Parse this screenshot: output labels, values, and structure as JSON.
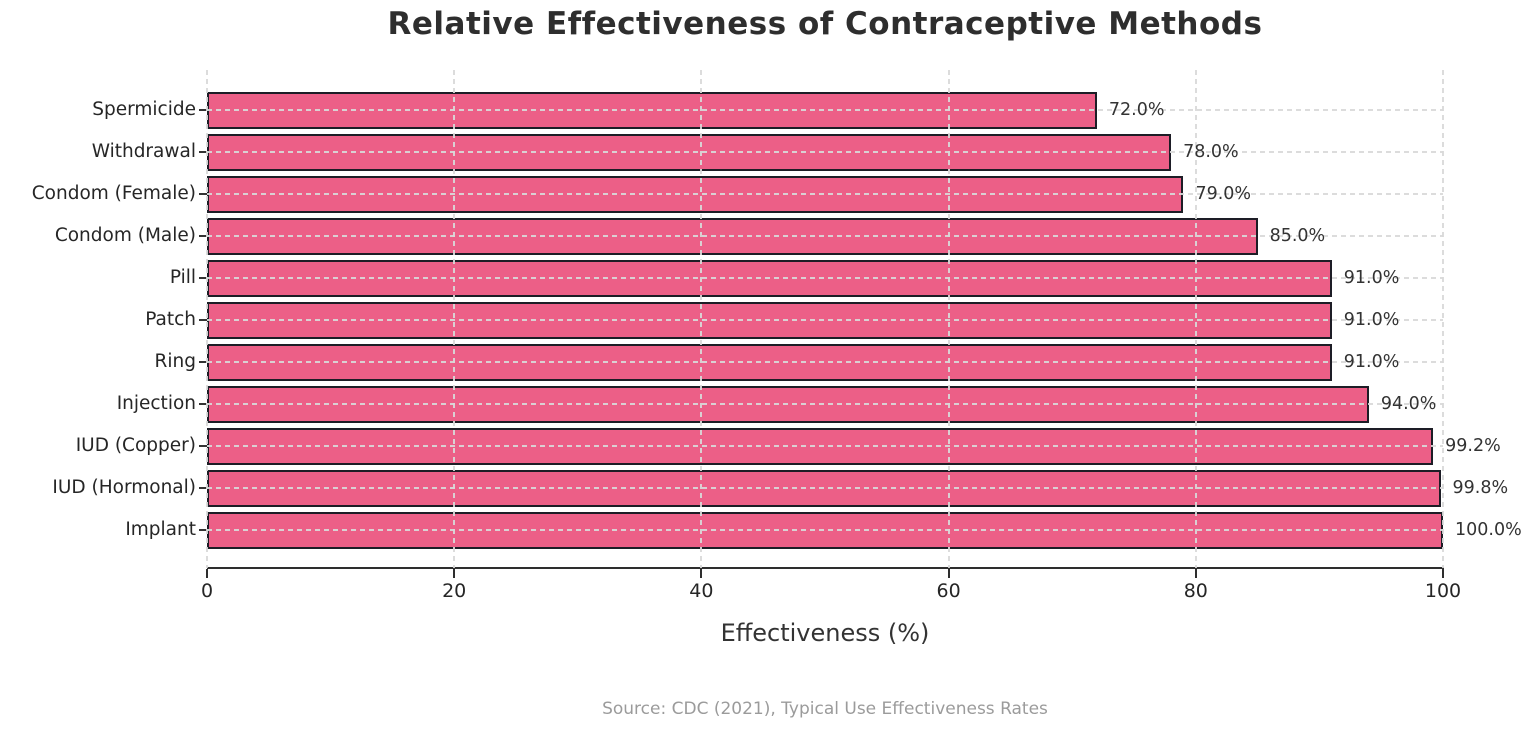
{
  "title": "Relative Effectiveness of Contraceptive Methods",
  "xlabel": "Effectiveness (%)",
  "source": "Source: CDC (2021), Typical Use Effectiveness Rates",
  "chart_data": {
    "type": "bar",
    "orientation": "horizontal",
    "title": "Relative Effectiveness of Contraceptive Methods",
    "xlabel": "Effectiveness (%)",
    "ylabel": "",
    "categories": [
      "Spermicide",
      "Withdrawal",
      "Condom (Female)",
      "Condom (Male)",
      "Pill",
      "Patch",
      "Ring",
      "Injection",
      "IUD (Copper)",
      "IUD (Hormonal)",
      "Implant"
    ],
    "values": [
      72.0,
      78.0,
      79.0,
      85.0,
      91.0,
      91.0,
      91.0,
      94.0,
      99.2,
      99.8,
      100.0
    ],
    "value_labels": [
      "72.0%",
      "78.0%",
      "79.0%",
      "85.0%",
      "91.0%",
      "91.0%",
      "91.0%",
      "94.0%",
      "99.2%",
      "99.8%",
      "100.0%"
    ],
    "xlim": [
      0,
      100
    ],
    "xticks": [
      0,
      20,
      40,
      60,
      80,
      100
    ],
    "grid": "dashed, horizontal and vertical, drawn over bars",
    "legend": "none",
    "source_note": "Source: CDC (2021), Typical Use Effectiveness Rates",
    "colors": {
      "bar_fill": "#ec5f87",
      "bar_edge": "#1d1d26",
      "grid": "#d9d9d9",
      "axis": "#2e2e2e",
      "title_text": "#2e2e2e",
      "tick_text": "#262626",
      "value_text": "#333333",
      "source_text": "#9b9b9b",
      "background": "#ffffff"
    }
  }
}
